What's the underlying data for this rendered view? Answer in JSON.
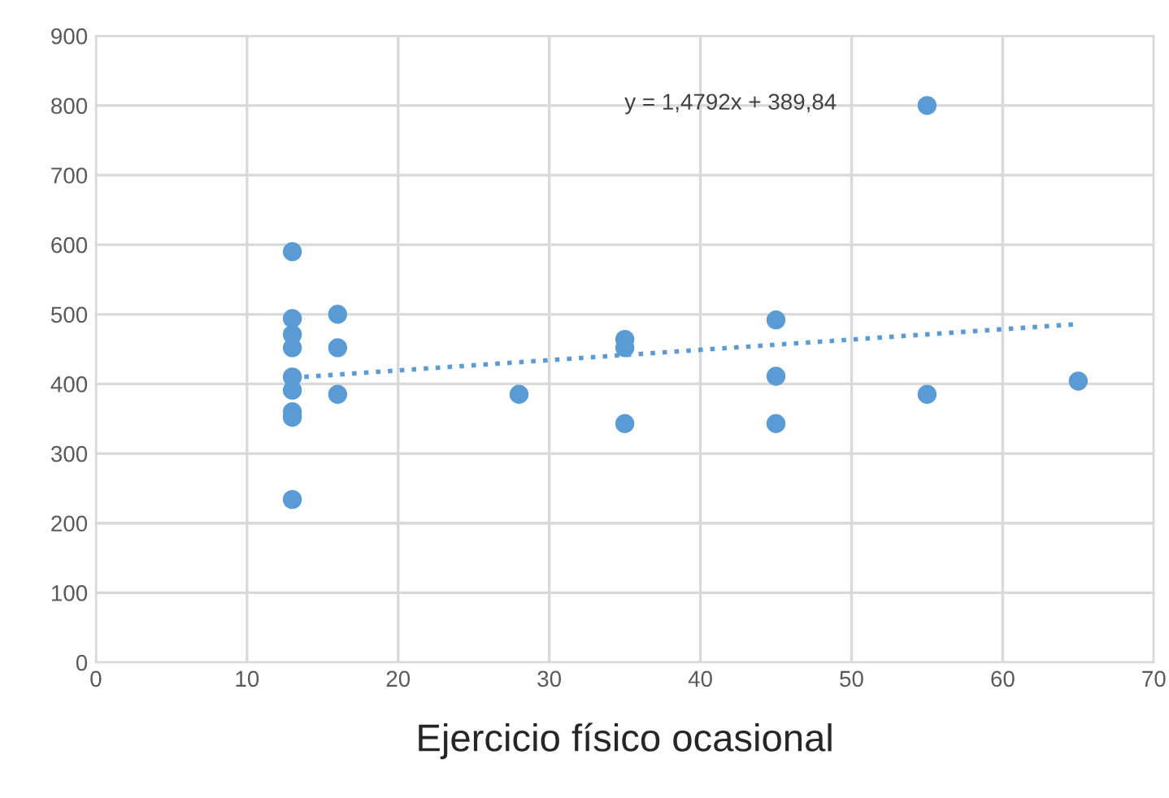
{
  "chart_data": {
    "type": "scatter",
    "xlabel": "Ejercicio físico ocasional",
    "series": [
      {
        "color": "#5b9bd5",
        "marker": "circle",
        "x": [
          13,
          13,
          13,
          13,
          13,
          13,
          13,
          13,
          13,
          16,
          16,
          16,
          28,
          35,
          35,
          35,
          45,
          45,
          45,
          55,
          55,
          65
        ],
        "values": [
          590,
          494,
          471,
          452,
          410,
          391,
          360,
          352,
          234,
          500,
          452,
          385,
          385,
          464,
          452,
          343,
          492,
          411,
          343,
          800,
          385,
          404
        ]
      },
      {
        "type": "line",
        "color": "#5b9bd5",
        "line_style": "dotted",
        "marker": "none",
        "x": [
          13,
          65
        ],
        "values": [
          409,
          486
        ]
      }
    ],
    "annotations": [
      "y = 1,4792x + 389,84"
    ],
    "xlim": [
      0,
      70
    ],
    "xticks": [
      0,
      10,
      20,
      30,
      40,
      50,
      60,
      70
    ],
    "ylim": [
      0,
      900
    ],
    "yticks": [
      0,
      100,
      200,
      300,
      400,
      500,
      600,
      700,
      800,
      900
    ],
    "grid": true,
    "legend": false
  }
}
